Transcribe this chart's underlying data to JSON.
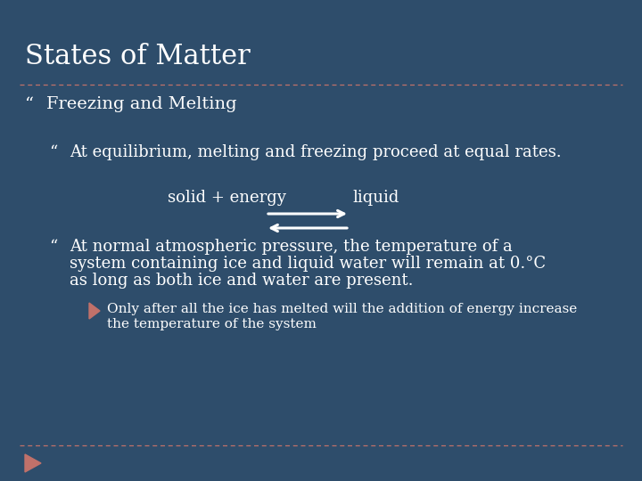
{
  "background_color": "#2E4D6B",
  "title": "States of Matter",
  "title_color": "#FFFFFF",
  "title_fontsize": 22,
  "dashed_line_color": "#C0716A",
  "bullet1_text": "Freezing and Melting",
  "bullet1_fontsize": 14,
  "bullet2_text": "At equilibrium, melting and freezing proceed at equal rates.",
  "bullet2_fontsize": 13,
  "solid_energy_text": "solid + energy",
  "liquid_text": "liquid",
  "eq_fontsize": 13,
  "arrow_color": "#FFFFFF",
  "bullet3_line1": "At normal atmospheric pressure, the temperature of a",
  "bullet3_line2": "system containing ice and liquid water will remain at 0.°C",
  "bullet3_line3": "as long as both ice and water are present.",
  "bullet3_fontsize": 13,
  "sub_bullet_line1": "Only after all the ice has melted will the addition of energy increase",
  "sub_bullet_line2": "the temperature of the system",
  "sub_bullet_fontsize": 11,
  "sub_bullet_marker_color": "#C0716A",
  "footer_triangle_color": "#C0716A",
  "text_color": "#FFFFFF",
  "quote_char": "“"
}
